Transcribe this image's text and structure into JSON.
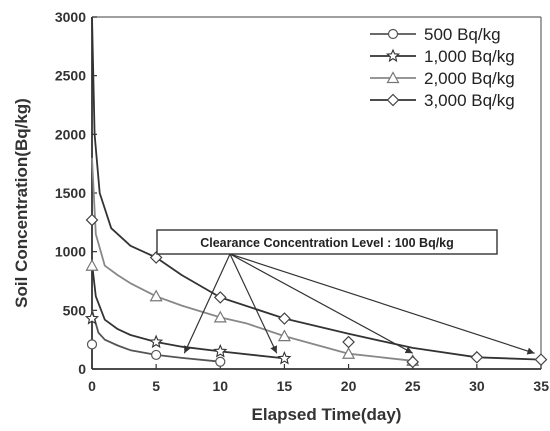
{
  "chart_data": {
    "type": "line",
    "xlabel": "Elapsed  Time(day)",
    "ylabel": "Soil Concentration(Bq/kg)",
    "xlim": [
      0,
      35
    ],
    "ylim": [
      0,
      3000
    ],
    "xticks": [
      "0",
      "5",
      "10",
      "15",
      "20",
      "25",
      "30",
      "35"
    ],
    "yticks": [
      "0",
      "500",
      "1000",
      "1500",
      "2000",
      "2500",
      "3000"
    ],
    "grid": false,
    "legend_position": "top-right",
    "series": [
      {
        "name": "500 Bq/kg",
        "marker": "circle",
        "color": "#555555",
        "markers": [
          [
            0,
            210
          ],
          [
            5,
            120
          ],
          [
            10,
            62
          ]
        ],
        "curve": [
          [
            0,
            500
          ],
          [
            0.5,
            310
          ],
          [
            1,
            250
          ],
          [
            2,
            200
          ],
          [
            3,
            160
          ],
          [
            5,
            120
          ],
          [
            7,
            95
          ],
          [
            10,
            62
          ]
        ]
      },
      {
        "name": "1,000 Bq/kg",
        "marker": "star",
        "color": "#333333",
        "markers": [
          [
            0,
            430
          ],
          [
            5,
            230
          ],
          [
            10,
            150
          ],
          [
            15,
            90
          ]
        ],
        "curve": [
          [
            0,
            900
          ],
          [
            0.3,
            620
          ],
          [
            1,
            420
          ],
          [
            2,
            340
          ],
          [
            3,
            290
          ],
          [
            5,
            230
          ],
          [
            7,
            190
          ],
          [
            10,
            150
          ],
          [
            15,
            90
          ]
        ]
      },
      {
        "name": "2,000 Bq/kg",
        "marker": "triangle",
        "color": "#888888",
        "markers": [
          [
            0,
            880
          ],
          [
            5,
            620
          ],
          [
            10,
            440
          ],
          [
            15,
            280
          ],
          [
            20,
            130
          ],
          [
            25,
            70
          ]
        ],
        "curve": [
          [
            0,
            1800
          ],
          [
            0.3,
            1150
          ],
          [
            1,
            880
          ],
          [
            2,
            800
          ],
          [
            3,
            730
          ],
          [
            5,
            620
          ],
          [
            7,
            540
          ],
          [
            10,
            440
          ],
          [
            12,
            390
          ],
          [
            15,
            280
          ],
          [
            20,
            130
          ],
          [
            25,
            70
          ]
        ]
      },
      {
        "name": "3,000 Bq/kg",
        "marker": "diamond",
        "color": "#333333",
        "markers": [
          [
            0,
            1270
          ],
          [
            5,
            950
          ],
          [
            10,
            610
          ],
          [
            15,
            430
          ],
          [
            20,
            230
          ],
          [
            25,
            60
          ],
          [
            30,
            100
          ],
          [
            35,
            80
          ]
        ],
        "curve": [
          [
            0,
            3000
          ],
          [
            0.2,
            2000
          ],
          [
            0.6,
            1500
          ],
          [
            1.5,
            1200
          ],
          [
            3,
            1050
          ],
          [
            5,
            950
          ],
          [
            7,
            800
          ],
          [
            10,
            610
          ],
          [
            15,
            430
          ],
          [
            20,
            300
          ],
          [
            25,
            180
          ],
          [
            30,
            100
          ],
          [
            35,
            80
          ]
        ]
      }
    ],
    "annotation": {
      "text": "Clearance Concentration Level : 100 Bq/kg",
      "arrow_targets": [
        [
          7.2,
          100
        ],
        [
          14.4,
          100
        ],
        [
          25,
          100
        ],
        [
          34.5,
          100
        ]
      ]
    }
  }
}
